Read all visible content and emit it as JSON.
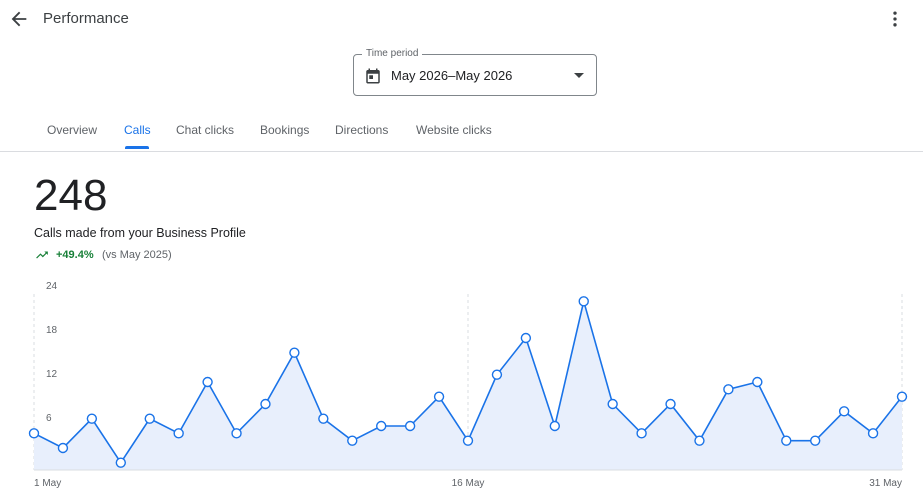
{
  "header": {
    "title": "Performance",
    "back_icon": "arrow-back-icon",
    "more_icon": "more-vert-icon"
  },
  "time_period": {
    "label": "Time period",
    "value": "May 2026–May 2026",
    "icon": "calendar-icon"
  },
  "tabs": [
    {
      "label": "Overview",
      "active": false
    },
    {
      "label": "Calls",
      "active": true
    },
    {
      "label": "Chat clicks",
      "active": false
    },
    {
      "label": "Bookings",
      "active": false
    },
    {
      "label": "Directions",
      "active": false
    },
    {
      "label": "Website clicks",
      "active": false
    }
  ],
  "metric": {
    "value": "248",
    "caption": "Calls made from your Business Profile",
    "change": "+49.4%",
    "comparison": "(vs May 2025)"
  },
  "colors": {
    "accent": "#1a73e8",
    "positive": "#188038",
    "line": "#1a73e8",
    "fill": "#e8effc"
  },
  "chart_data": {
    "type": "area",
    "x": [
      1,
      2,
      3,
      4,
      5,
      6,
      7,
      8,
      9,
      10,
      11,
      12,
      13,
      14,
      15,
      16,
      17,
      18,
      19,
      20,
      21,
      22,
      23,
      24,
      25,
      26,
      27,
      28,
      29,
      30,
      31
    ],
    "values": [
      5,
      3,
      7,
      1,
      7,
      5,
      12,
      5,
      9,
      16,
      7,
      4,
      6,
      6,
      10,
      4,
      13,
      18,
      6,
      23,
      9,
      5,
      9,
      4,
      11,
      12,
      4,
      4,
      8,
      5,
      10
    ],
    "y_ticks": [
      6,
      12,
      18,
      24
    ],
    "x_tick_labels": [
      "1 May",
      "16 May",
      "31 May"
    ],
    "ylim": [
      0,
      24
    ]
  }
}
